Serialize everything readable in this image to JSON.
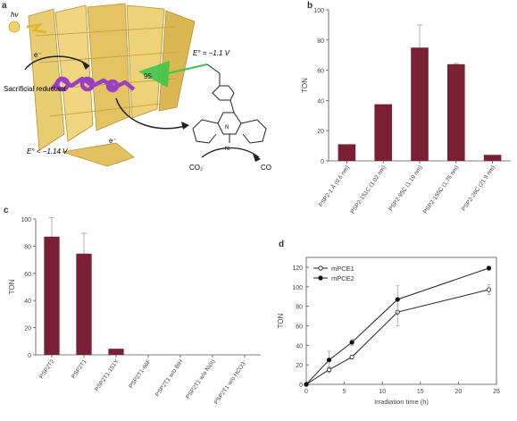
{
  "panels": {
    "a": {
      "letter": "a",
      "hv_label": "hν",
      "electron_label": "e⁻",
      "electron_label_2": "e⁻",
      "sacrificial_label": "Sacrificial reductant",
      "residue_label": "95",
      "e0_right": "E° = −1.1 V",
      "e0_left": "E° < −1.14 V",
      "co2_label": "CO₂",
      "co_label": "CO",
      "colors": {
        "barrel": "#e8c968",
        "barrel_dark": "#b8902e",
        "dye": "#9a3fc2",
        "link": "#3cc64a"
      }
    },
    "b": {
      "letter": "b"
    },
    "c": {
      "letter": "c"
    },
    "d": {
      "letter": "d"
    }
  },
  "chart_data": [
    {
      "id": "b",
      "type": "bar",
      "ylabel": "TON",
      "xlabel": "",
      "ylim": [
        0,
        100
      ],
      "yticks": [
        0,
        20,
        40,
        60,
        80,
        100
      ],
      "categories": [
        "PSP2-1 Å (0.6 nm)",
        "PSP2-151C (1.02 nm)",
        "PSP2-95C (1.19 nm)",
        "PSP2-155C (1.76 nm)",
        "PSP2-26C (21.9 nm)"
      ],
      "values": [
        11,
        37.5,
        75,
        64,
        4
      ],
      "errors": [
        0,
        0,
        15,
        0.5,
        0
      ],
      "color": "#7b2034"
    },
    {
      "id": "c",
      "type": "bar",
      "ylabel": "TON",
      "xlabel": "",
      "ylim": [
        0,
        100
      ],
      "yticks": [
        0,
        20,
        40,
        60,
        80,
        100
      ],
      "categories": [
        "PSP2T2",
        "PSP2T1",
        "PSP2T1-151Y",
        "PSP2T1-66F",
        "PSP2T1 w/o BIH",
        "PSP2T1 w/o Ni(II)",
        "PSP2T1 w/o HCO3⁻"
      ],
      "values": [
        87,
        74.5,
        4.5,
        0,
        0,
        0,
        0
      ],
      "errors": [
        14,
        15,
        0,
        0,
        0,
        0,
        0
      ],
      "color": "#7b2034"
    },
    {
      "id": "d",
      "type": "line",
      "ylabel": "TON",
      "xlabel": "Irradiation time (h)",
      "xlim": [
        0,
        25
      ],
      "ylim": [
        0,
        130
      ],
      "xticks": [
        0,
        5,
        10,
        15,
        20,
        25
      ],
      "yticks": [
        0,
        20,
        40,
        60,
        80,
        100,
        120
      ],
      "legend_position": "top-left",
      "series": [
        {
          "name": "mPCE1",
          "marker": "open",
          "x": [
            0,
            3,
            6,
            12,
            24
          ],
          "values": [
            0,
            15,
            28,
            74,
            97
          ],
          "errors": [
            0,
            3,
            2,
            14,
            5
          ]
        },
        {
          "name": "mPCE2",
          "marker": "filled",
          "x": [
            0,
            3,
            6,
            12,
            24
          ],
          "values": [
            0,
            25,
            43,
            87,
            119
          ],
          "errors": [
            0,
            9,
            3,
            14,
            2
          ]
        }
      ]
    }
  ]
}
